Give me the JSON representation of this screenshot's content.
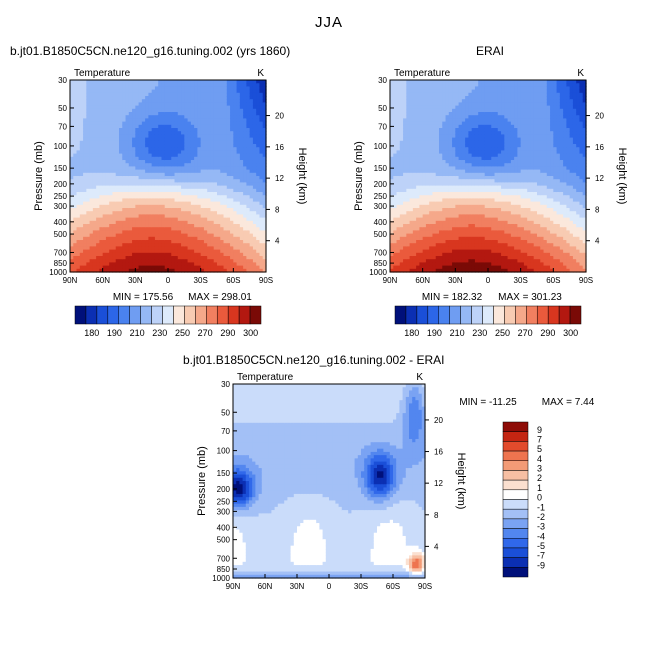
{
  "figure": {
    "title": "JJA"
  },
  "chart_data": [
    {
      "type": "heatmap",
      "title": "b.jt01.B1850C5CN.ne120_g16.tuning.002 (yrs 1860)",
      "subtitle": "Temperature",
      "units": "K",
      "ylabel": "Pressure (mb)",
      "ylabel2": "Height (km)",
      "x_ticks": [
        "90N",
        "60N",
        "30N",
        "0",
        "30S",
        "60S",
        "90S"
      ],
      "y_ticks": [
        "30",
        "50",
        "70",
        "100",
        "150",
        "200",
        "250",
        "300",
        "400",
        "500",
        "700",
        "850",
        "1000"
      ],
      "y2_ticks": [
        "20",
        "16",
        "12",
        "8",
        "4"
      ],
      "min_label": "MIN = 175.56",
      "max_label": "MAX = 298.01",
      "min": 175.56,
      "max": 298.01,
      "colorbar_labels": [
        "180",
        "190",
        "210",
        "230",
        "250",
        "270",
        "290",
        "300"
      ]
    },
    {
      "type": "heatmap",
      "title": "ERAI",
      "subtitle": "Temperature",
      "units": "K",
      "ylabel": "Pressure (mb)",
      "ylabel2": "Height (km)",
      "x_ticks": [
        "90N",
        "60N",
        "30N",
        "0",
        "30S",
        "60S",
        "90S"
      ],
      "y_ticks": [
        "30",
        "50",
        "70",
        "100",
        "150",
        "200",
        "250",
        "300",
        "400",
        "500",
        "700",
        "850",
        "1000"
      ],
      "y2_ticks": [
        "20",
        "16",
        "12",
        "8",
        "4"
      ],
      "min_label": "MIN = 182.32",
      "max_label": "MAX = 301.23",
      "min": 182.32,
      "max": 301.23,
      "colorbar_labels": [
        "180",
        "190",
        "210",
        "230",
        "250",
        "270",
        "290",
        "300"
      ]
    },
    {
      "type": "heatmap",
      "title": "b.jt01.B1850C5CN.ne120_g16.tuning.002 - ERAI",
      "subtitle": "Temperature",
      "units": "K",
      "ylabel": "Pressure (mb)",
      "ylabel2": "Height (km)",
      "x_ticks": [
        "90N",
        "60N",
        "30N",
        "0",
        "30S",
        "60S",
        "90S"
      ],
      "y_ticks": [
        "30",
        "50",
        "70",
        "100",
        "150",
        "200",
        "250",
        "300",
        "400",
        "500",
        "700",
        "850",
        "1000"
      ],
      "y2_ticks": [
        "20",
        "16",
        "12",
        "8",
        "4"
      ],
      "min_label": "MIN = -11.25",
      "max_label": "MAX =   7.44",
      "min": -11.25,
      "max": 7.44,
      "colorbar_labels": [
        "9",
        "7",
        "5",
        "4",
        "3",
        "2",
        "1",
        "0",
        "-1",
        "-2",
        "-3",
        "-4",
        "-5",
        "-7",
        "-9"
      ]
    }
  ],
  "colors": {
    "abs_scale": [
      "#00107a",
      "#0b2fb3",
      "#1a4fd8",
      "#2c66e8",
      "#4a82ef",
      "#6f9df2",
      "#95b8f5",
      "#bdd2f8",
      "#ddeafb",
      "#fbe8dc",
      "#f8cbb2",
      "#f5a88a",
      "#f17f60",
      "#ea5a3c",
      "#d8361f",
      "#b31810",
      "#7a0a06"
    ],
    "diff_scale": [
      "#00107a",
      "#0b2fb3",
      "#1a4fd8",
      "#3068ea",
      "#5286ef",
      "#7aa3f3",
      "#a3c0f6",
      "#cadcfa",
      "#ffffff",
      "#fbe0d0",
      "#f7bfa3",
      "#f39b76",
      "#ee744f",
      "#e24b2c",
      "#c42512",
      "#8e0c07"
    ]
  }
}
